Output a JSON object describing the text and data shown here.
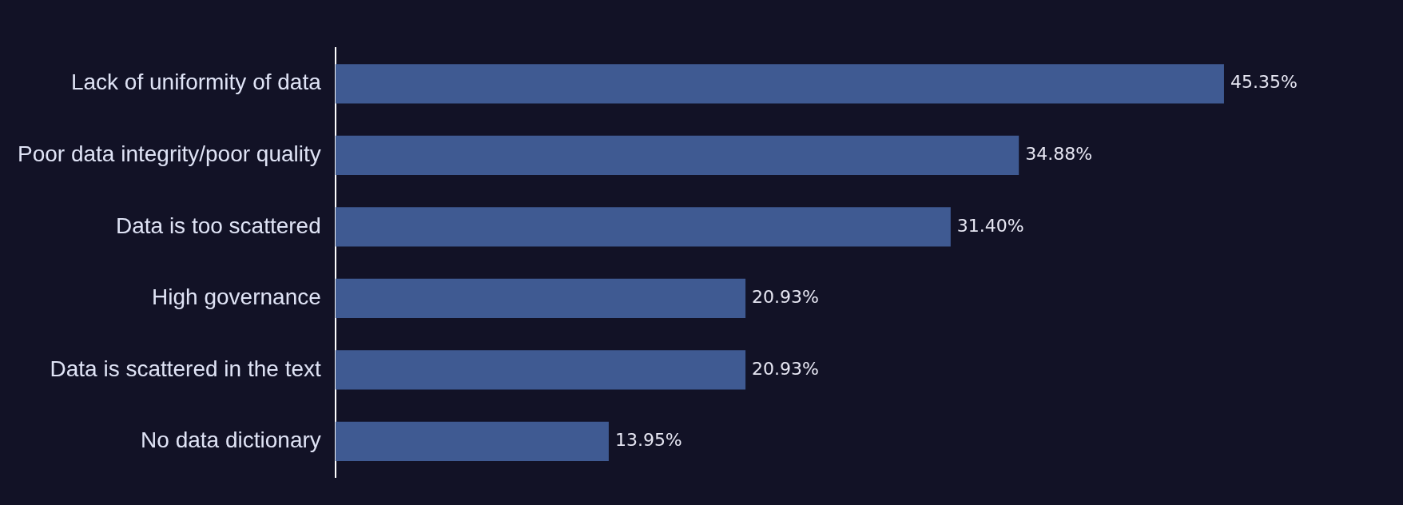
{
  "chart_data": {
    "type": "bar",
    "orientation": "horizontal",
    "categories": [
      "Lack of uniformity of data",
      "Poor data integrity/poor quality",
      "Data is too scattered",
      "High governance",
      "Data is scattered in the text",
      "No data dictionary"
    ],
    "values": [
      45.35,
      34.88,
      31.4,
      20.93,
      20.93,
      13.95
    ],
    "value_labels": [
      "45.35%",
      "34.88%",
      "31.40%",
      "20.93%",
      "20.93%",
      "13.95%"
    ],
    "color": "#3f5a92",
    "legend": false
  }
}
